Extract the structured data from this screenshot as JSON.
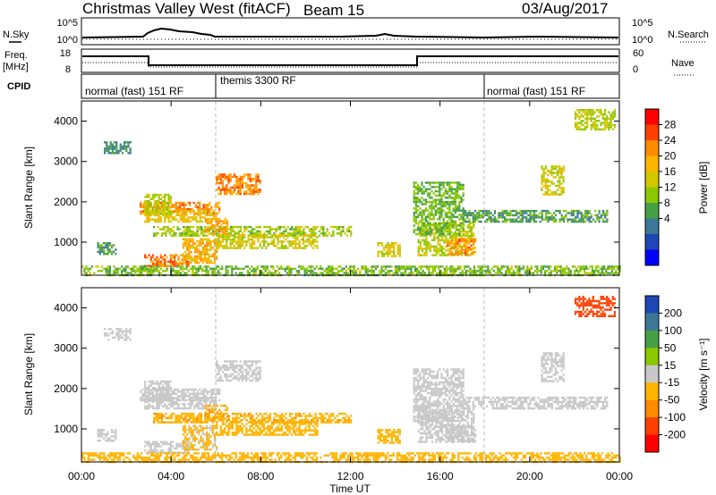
{
  "header": {
    "title": "Christmas Valley West (fitACF)",
    "beam": "Beam 15",
    "date": "03/Aug/2017"
  },
  "strips": {
    "nsky_label": "N.Sky",
    "nsearch_label": "N.Search",
    "nsky_ticks": [
      "10^5",
      "10^0"
    ],
    "nsearch_ticks": [
      "10^5",
      "10^0"
    ],
    "freq_label_1": "Freq.",
    "freq_label_2": "[MHz]",
    "freq_ticks": [
      "18",
      "8"
    ],
    "nave_label": "Nave",
    "nave_ticks": [
      "60",
      "0"
    ],
    "cpid_label": "CPID",
    "cpid_segments": [
      "normal (fast) 151 RF",
      "themis 3300 RF",
      "normal (fast) 151 RF"
    ]
  },
  "power_colorbar": {
    "label": "Power [dB]",
    "ticks": [
      "28",
      "24",
      "20",
      "16",
      "12",
      "8",
      "4"
    ],
    "colors": [
      "#ff0000",
      "#ff4000",
      "#ff8c00",
      "#ffb400",
      "#d2c800",
      "#8cc800",
      "#46a046",
      "#3c7896",
      "#1e46b4",
      "#0000ff"
    ]
  },
  "velocity_colorbar": {
    "label": "Velocity [m s⁻¹]",
    "ticks": [
      "200",
      "100",
      "50",
      "15",
      "-15",
      "-50",
      "-100",
      "-200"
    ],
    "colors": [
      "#1e46b4",
      "#3c7896",
      "#46a046",
      "#8cc800",
      "#c8c8c8",
      "#ffb400",
      "#ff8c00",
      "#ff4000",
      "#ff0000"
    ]
  },
  "chart_data": [
    {
      "type": "heatmap",
      "name": "power",
      "ylabel": "Slant Range [km]",
      "ylim": [
        180,
        4500
      ],
      "xlim": [
        0,
        24
      ],
      "y_ticks": [
        "1000",
        "2000",
        "3000",
        "4000"
      ],
      "x_ticks": [
        "00:00",
        "04:00",
        "08:00",
        "12:00",
        "16:00",
        "20:00",
        "00:00"
      ],
      "x_tick_hours": [
        0,
        4,
        8,
        12,
        16,
        20,
        24
      ],
      "regions": [
        {
          "t": [
            2.6,
            6.2
          ],
          "r": [
            1700,
            2000
          ],
          "v": 26
        },
        {
          "t": [
            2.8,
            6.0
          ],
          "r": [
            1500,
            1800
          ],
          "v": 20
        },
        {
          "t": [
            3.2,
            12.0
          ],
          "r": [
            1150,
            1400
          ],
          "v": 15
        },
        {
          "t": [
            5.5,
            6.5
          ],
          "r": [
            1200,
            1600
          ],
          "v": 24
        },
        {
          "t": [
            6.0,
            8.0
          ],
          "r": [
            2200,
            2700
          ],
          "v": 26
        },
        {
          "t": [
            2.8,
            4.8
          ],
          "r": [
            400,
            700
          ],
          "v": 27
        },
        {
          "t": [
            4.5,
            6.0
          ],
          "r": [
            500,
            1100
          ],
          "v": 22
        },
        {
          "t": [
            6.0,
            10.5
          ],
          "r": [
            850,
            1200
          ],
          "v": 18
        },
        {
          "t": [
            0.7,
            1.5
          ],
          "r": [
            700,
            1000
          ],
          "v": 10
        },
        {
          "t": [
            2.8,
            4.0
          ],
          "r": [
            1700,
            2200
          ],
          "v": 16
        },
        {
          "t": [
            15.0,
            17.5
          ],
          "r": [
            700,
            1500
          ],
          "v": 17
        },
        {
          "t": [
            16.3,
            17.6
          ],
          "r": [
            700,
            1100
          ],
          "v": 25
        },
        {
          "t": [
            17.0,
            23.5
          ],
          "r": [
            1500,
            1800
          ],
          "v": 10
        },
        {
          "t": [
            20.5,
            21.5
          ],
          "r": [
            2200,
            2900
          ],
          "v": 18
        },
        {
          "t": [
            13.2,
            14.2
          ],
          "r": [
            650,
            1000
          ],
          "v": 18
        },
        {
          "t": [
            1.0,
            2.2
          ],
          "r": [
            3200,
            3500
          ],
          "v": 8
        },
        {
          "t": [
            0.0,
            24.0
          ],
          "r": [
            180,
            420
          ],
          "v": 13
        },
        {
          "t": [
            14.8,
            17.0
          ],
          "r": [
            1200,
            2500
          ],
          "v": 12
        },
        {
          "t": [
            22.0,
            23.8
          ],
          "r": [
            3800,
            4300
          ],
          "v": 16
        }
      ]
    },
    {
      "type": "heatmap",
      "name": "velocity",
      "ylabel": "Slant Range [km]",
      "ylim": [
        180,
        4500
      ],
      "xlim": [
        0,
        24
      ],
      "xlabel": "Time UT",
      "y_ticks": [
        "1000",
        "2000",
        "3000",
        "4000"
      ],
      "x_ticks": [
        "00:00",
        "04:00",
        "08:00",
        "12:00",
        "16:00",
        "20:00",
        "00:00"
      ],
      "x_tick_hours": [
        0,
        4,
        8,
        12,
        16,
        20,
        24
      ],
      "regions": [
        {
          "t": [
            2.6,
            6.2
          ],
          "r": [
            1700,
            2000
          ],
          "v": 0
        },
        {
          "t": [
            2.8,
            6.0
          ],
          "r": [
            1500,
            1800
          ],
          "v": 0
        },
        {
          "t": [
            3.2,
            12.0
          ],
          "r": [
            1150,
            1400
          ],
          "v": -40
        },
        {
          "t": [
            5.5,
            6.5
          ],
          "r": [
            1200,
            1600
          ],
          "v": -45
        },
        {
          "t": [
            6.0,
            8.0
          ],
          "r": [
            2200,
            2700
          ],
          "v": 0
        },
        {
          "t": [
            2.8,
            4.8
          ],
          "r": [
            400,
            700
          ],
          "v": 0
        },
        {
          "t": [
            4.5,
            6.0
          ],
          "r": [
            500,
            1100
          ],
          "v": -20
        },
        {
          "t": [
            6.0,
            10.5
          ],
          "r": [
            850,
            1200
          ],
          "v": -35
        },
        {
          "t": [
            0.7,
            1.5
          ],
          "r": [
            700,
            1000
          ],
          "v": 0
        },
        {
          "t": [
            2.8,
            4.0
          ],
          "r": [
            1700,
            2200
          ],
          "v": 0
        },
        {
          "t": [
            15.0,
            17.5
          ],
          "r": [
            700,
            1500
          ],
          "v": 0
        },
        {
          "t": [
            16.3,
            17.6
          ],
          "r": [
            700,
            1100
          ],
          "v": 0
        },
        {
          "t": [
            17.0,
            23.5
          ],
          "r": [
            1500,
            1800
          ],
          "v": 0
        },
        {
          "t": [
            20.5,
            21.5
          ],
          "r": [
            2200,
            2900
          ],
          "v": 0
        },
        {
          "t": [
            13.2,
            14.2
          ],
          "r": [
            650,
            1000
          ],
          "v": -30
        },
        {
          "t": [
            1.0,
            2.2
          ],
          "r": [
            3200,
            3500
          ],
          "v": 0
        },
        {
          "t": [
            0.0,
            24.0
          ],
          "r": [
            180,
            420
          ],
          "v": -30
        },
        {
          "t": [
            14.8,
            17.0
          ],
          "r": [
            1200,
            2500
          ],
          "v": 0
        },
        {
          "t": [
            22.0,
            23.8
          ],
          "r": [
            3800,
            4300
          ],
          "v": -150
        }
      ]
    }
  ]
}
